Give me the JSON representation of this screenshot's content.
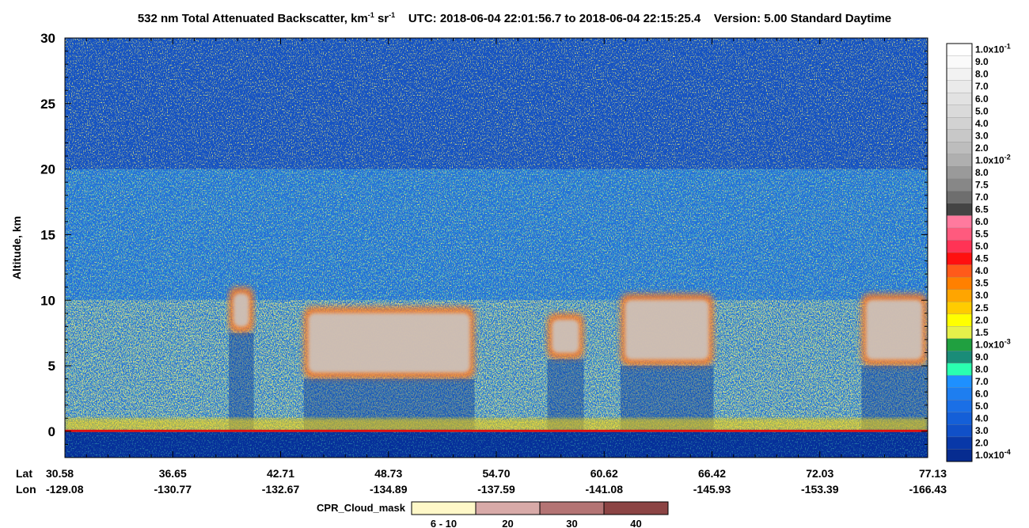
{
  "header": {
    "title_main": "532 nm Total Attenuated Backscatter, km",
    "title_unit_sup1": "-1",
    "title_sr": " sr",
    "title_unit_sup2": "-1",
    "utc_text": "UTC:  2018-06-04 22:01:56.7  to  2018-06-04 22:15:25.4",
    "version_text": "Version: 5.00  Standard  Daytime"
  },
  "chart_data": {
    "type": "heatmap",
    "ylabel": "Altitude, km",
    "ylim": [
      -2,
      30
    ],
    "y_ticks": [
      "30",
      "25",
      "20",
      "15",
      "10",
      "5",
      "0"
    ],
    "x_row_labels": [
      "Lat",
      "Lon"
    ],
    "x_ticks": [
      {
        "lat": "30.58",
        "lon": "-129.08"
      },
      {
        "lat": "36.65",
        "lon": "-130.77"
      },
      {
        "lat": "42.71",
        "lon": "-132.67"
      },
      {
        "lat": "48.73",
        "lon": "-134.89"
      },
      {
        "lat": "54.70",
        "lon": "-137.59"
      },
      {
        "lat": "60.62",
        "lon": "-141.08"
      },
      {
        "lat": "66.42",
        "lon": "-145.93"
      },
      {
        "lat": "72.03",
        "lon": "-153.39"
      },
      {
        "lat": "77.13",
        "lon": "-166.43"
      }
    ],
    "colorbar": [
      {
        "label": "1.0x10",
        "exp": "-1",
        "color": "#ffffff"
      },
      {
        "label": "9.0",
        "color": "#fafafa"
      },
      {
        "label": "8.0",
        "color": "#f2f2f2"
      },
      {
        "label": "7.0",
        "color": "#eaeaea"
      },
      {
        "label": "6.0",
        "color": "#e2e2e2"
      },
      {
        "label": "5.0",
        "color": "#dadada"
      },
      {
        "label": "4.0",
        "color": "#d2d2d2"
      },
      {
        "label": "3.0",
        "color": "#c8c8c8"
      },
      {
        "label": "2.0",
        "color": "#bdbdbd"
      },
      {
        "label": "1.0x10",
        "exp": "-2",
        "color": "#afafaf"
      },
      {
        "label": "8.0",
        "color": "#9a9a9a"
      },
      {
        "label": "7.5",
        "color": "#878787"
      },
      {
        "label": "7.0",
        "color": "#6e6e6e"
      },
      {
        "label": "6.5",
        "color": "#444444"
      },
      {
        "label": "6.0",
        "color": "#ff7a9e"
      },
      {
        "label": "5.5",
        "color": "#ff5a7e"
      },
      {
        "label": "5.0",
        "color": "#ff3355"
      },
      {
        "label": "4.5",
        "color": "#ff1010"
      },
      {
        "label": "4.0",
        "color": "#ff5a1a"
      },
      {
        "label": "3.5",
        "color": "#ff8000"
      },
      {
        "label": "3.0",
        "color": "#ffa500"
      },
      {
        "label": "2.5",
        "color": "#ffcc00"
      },
      {
        "label": "2.0",
        "color": "#ffff00"
      },
      {
        "label": "1.5",
        "color": "#e6f04a"
      },
      {
        "label": "1.0x10",
        "exp": "-3",
        "color": "#20a040"
      },
      {
        "label": "9.0",
        "color": "#1a8c78"
      },
      {
        "label": "8.0",
        "color": "#2affb0"
      },
      {
        "label": "7.0",
        "color": "#1e90ff"
      },
      {
        "label": "6.0",
        "color": "#1e7ef0"
      },
      {
        "label": "5.0",
        "color": "#1a6fe6"
      },
      {
        "label": "4.0",
        "color": "#145fd8"
      },
      {
        "label": "3.0",
        "color": "#1050c8"
      },
      {
        "label": "2.0",
        "color": "#0838a8"
      },
      {
        "label": "1.0x10",
        "exp": "-4",
        "color": "#062c90"
      }
    ],
    "cloud_mask": {
      "label": "CPR_Cloud_mask",
      "bins": [
        {
          "label": "6 - 10",
          "color": "#fff8c8"
        },
        {
          "label": "20",
          "color": "#d8aaa8"
        },
        {
          "label": "30",
          "color": "#b47474"
        },
        {
          "label": "40",
          "color": "#8c4444"
        }
      ]
    },
    "features": {
      "ground_altitude_km": 0,
      "surface_layer_top_km": 1,
      "cloud_segments": [
        {
          "lat_from": 39.8,
          "lat_to": 41.2,
          "base_km": 7.5,
          "top_km": 11
        },
        {
          "lat_from": 44.0,
          "lat_to": 53.5,
          "base_km": 4.0,
          "top_km": 9.5
        },
        {
          "lat_from": 57.5,
          "lat_to": 59.5,
          "base_km": 5.5,
          "top_km": 9.0
        },
        {
          "lat_from": 61.5,
          "lat_to": 66.5,
          "base_km": 5.0,
          "top_km": 10.5
        },
        {
          "lat_from": 74.0,
          "lat_to": 77.1,
          "base_km": 5.0,
          "top_km": 10.5
        }
      ]
    }
  }
}
